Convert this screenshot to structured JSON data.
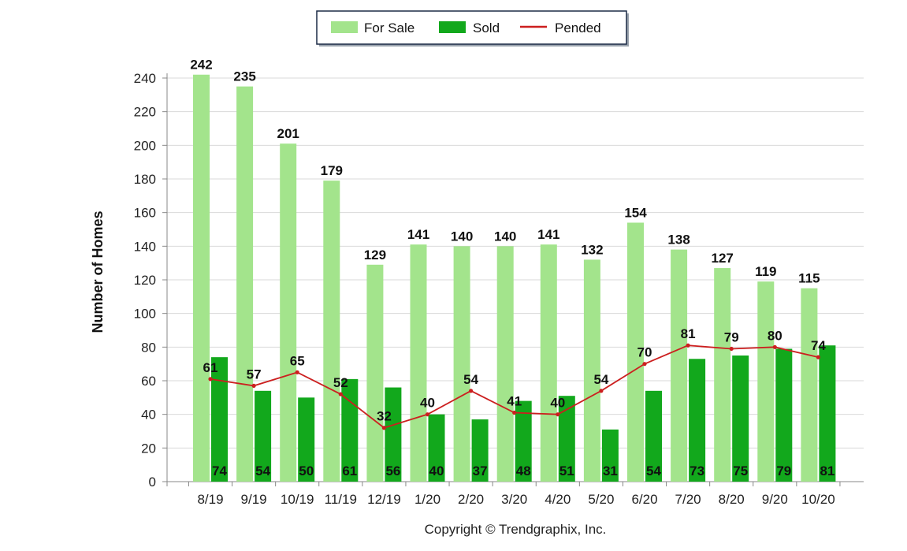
{
  "chart_data": {
    "type": "bar",
    "categories": [
      "8/19",
      "9/19",
      "10/19",
      "11/19",
      "12/19",
      "1/20",
      "2/20",
      "3/20",
      "4/20",
      "5/20",
      "6/20",
      "7/20",
      "8/20",
      "9/20",
      "10/20"
    ],
    "series": [
      {
        "name": "For Sale",
        "kind": "bar",
        "color": "#a3e48c",
        "values": [
          242,
          235,
          201,
          179,
          129,
          141,
          140,
          140,
          141,
          132,
          154,
          138,
          127,
          119,
          115
        ]
      },
      {
        "name": "Sold",
        "kind": "bar",
        "color": "#12a81c",
        "values": [
          74,
          54,
          50,
          61,
          56,
          40,
          37,
          48,
          51,
          31,
          54,
          73,
          75,
          79,
          81
        ]
      },
      {
        "name": "Pended",
        "kind": "line",
        "color": "#cc1f1f",
        "values": [
          61,
          57,
          65,
          52,
          32,
          40,
          54,
          41,
          40,
          54,
          70,
          81,
          79,
          80,
          74
        ]
      }
    ],
    "title": "",
    "xlabel": "",
    "ylabel": "Number of Homes",
    "ylim": [
      0,
      240
    ],
    "yticks": [
      0,
      20,
      40,
      60,
      80,
      100,
      120,
      140,
      160,
      180,
      200,
      220,
      240
    ],
    "grid": true,
    "legend": "top-center",
    "copyright": "Copyright © Trendgraphix, Inc."
  }
}
